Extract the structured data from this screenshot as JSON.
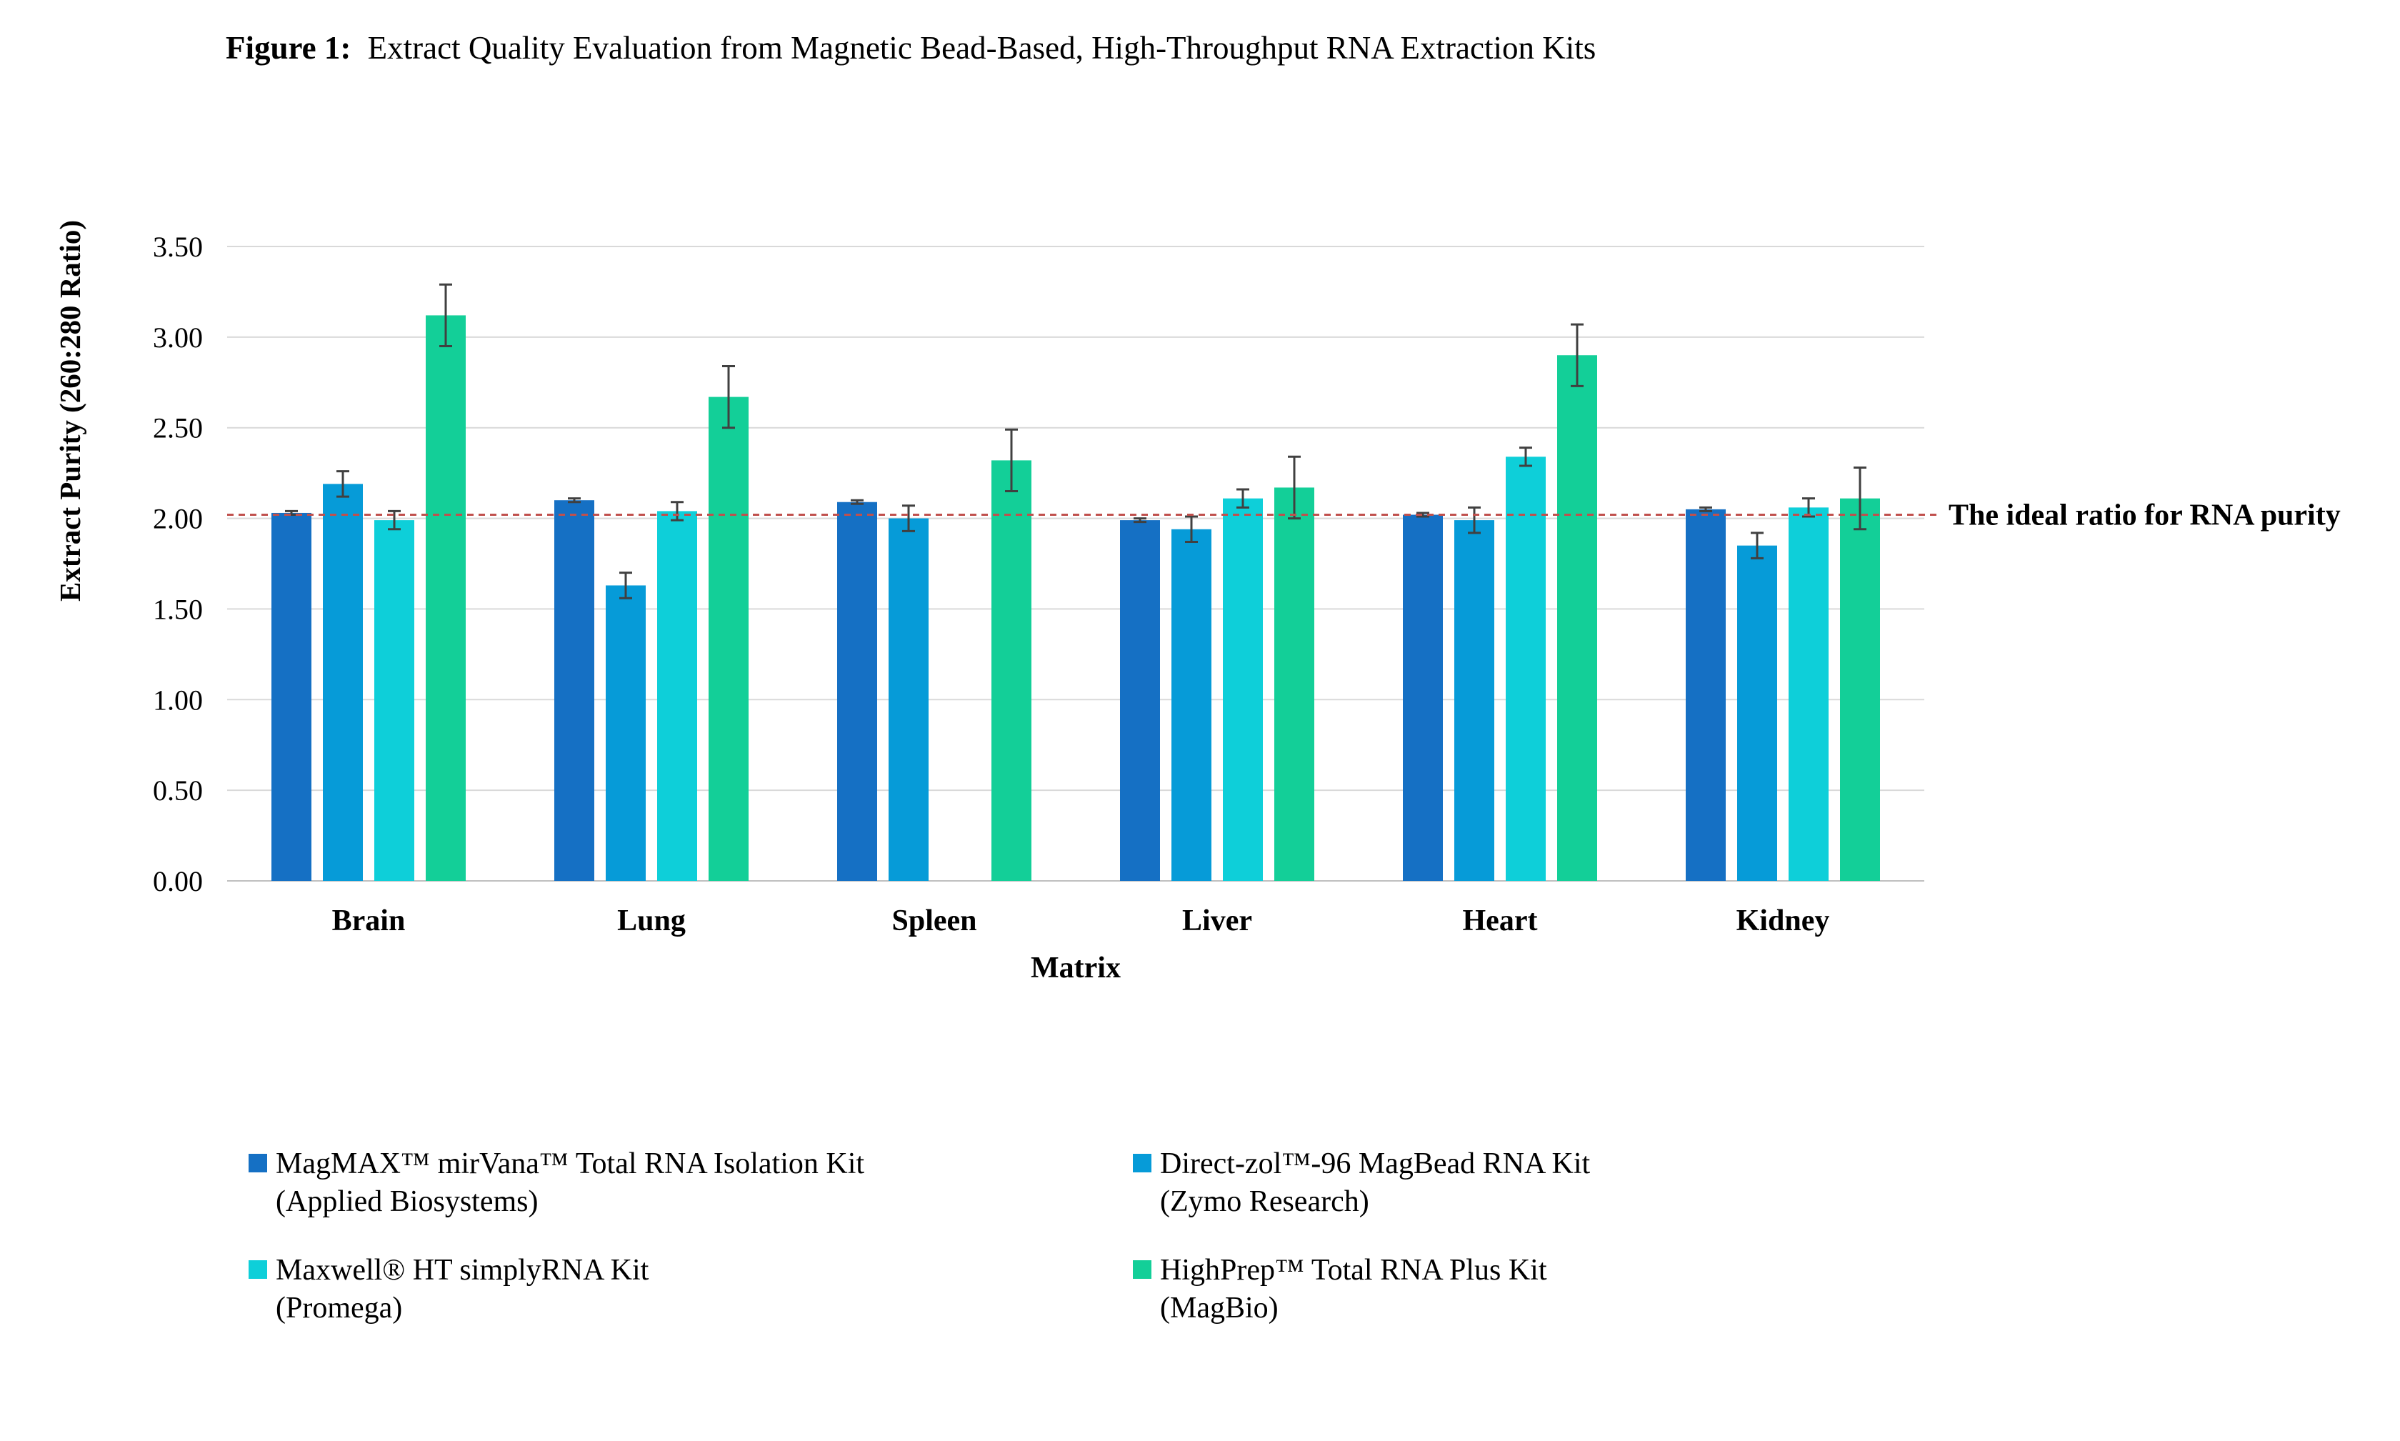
{
  "figure": {
    "label": "Figure 1:",
    "title": "Extract Quality Evaluation from Magnetic Bead-Based, High-Throughput RNA Extraction Kits"
  },
  "annotation": "The ideal ratio for RNA purity",
  "colors": {
    "MagMAX": "#1570c4",
    "DirectZol": "#069bd8",
    "Maxwell": "#0ecfd9",
    "HighPrep": "#13cf98",
    "grid": "#d9d9d9",
    "ideal_line": "#c0504d",
    "error_bar": "#404040"
  },
  "legend": [
    {
      "key": "MagMAX",
      "line1": "MagMAX™ mirVana™ Total RNA Isolation Kit",
      "line2": "(Applied Biosystems)"
    },
    {
      "key": "DirectZol",
      "line1": "Direct-zol™-96 MagBead RNA Kit",
      "line2": "(Zymo Research)"
    },
    {
      "key": "Maxwell",
      "line1": "Maxwell® HT simplyRNA Kit",
      "line2": "(Promega)"
    },
    {
      "key": "HighPrep",
      "line1": "HighPrep™ Total RNA Plus Kit",
      "line2": "(MagBio)"
    }
  ],
  "chart_data": {
    "type": "bar",
    "title": "Figure 1: Extract Quality Evaluation from Magnetic Bead-Based, High-Throughput RNA Extraction Kits",
    "xlabel": "Matrix",
    "ylabel": "Extract Purity (260:280 Ratio)",
    "ylim": [
      0,
      3.5
    ],
    "yticks": [
      0.0,
      0.5,
      1.0,
      1.5,
      2.0,
      2.5,
      3.0,
      3.5
    ],
    "ytick_labels": [
      "0.00",
      "0.50",
      "1.00",
      "1.50",
      "2.00",
      "2.50",
      "3.00",
      "3.50"
    ],
    "grid": true,
    "legend_position": "bottom",
    "categories": [
      "Brain",
      "Lung",
      "Spleen",
      "Liver",
      "Heart",
      "Kidney"
    ],
    "reference_line": {
      "y": 2.02,
      "label": "The ideal ratio for RNA purity",
      "style": "dashed"
    },
    "series": [
      {
        "name": "MagMAX™ mirVana™ Total RNA Isolation Kit (Applied Biosystems)",
        "key": "MagMAX",
        "values": [
          2.03,
          2.1,
          2.09,
          1.99,
          2.02,
          2.05
        ],
        "errors": [
          0.01,
          0.01,
          0.01,
          0.01,
          0.01,
          0.01
        ]
      },
      {
        "name": "Direct-zol™-96 MagBead RNA Kit (Zymo Research)",
        "key": "DirectZol",
        "values": [
          2.19,
          1.63,
          2.0,
          1.94,
          1.99,
          1.85
        ],
        "errors": [
          0.07,
          0.07,
          0.07,
          0.07,
          0.07,
          0.07
        ]
      },
      {
        "name": "Maxwell® HT simplyRNA Kit (Promega)",
        "key": "Maxwell",
        "values": [
          1.99,
          2.04,
          null,
          2.11,
          2.34,
          2.06
        ],
        "errors": [
          0.05,
          0.05,
          null,
          0.05,
          0.05,
          0.05
        ]
      },
      {
        "name": "HighPrep™ Total RNA Plus Kit (MagBio)",
        "key": "HighPrep",
        "values": [
          3.12,
          2.67,
          2.32,
          2.17,
          2.9,
          2.11
        ],
        "errors": [
          0.17,
          0.17,
          0.17,
          0.17,
          0.17,
          0.17
        ]
      }
    ]
  }
}
